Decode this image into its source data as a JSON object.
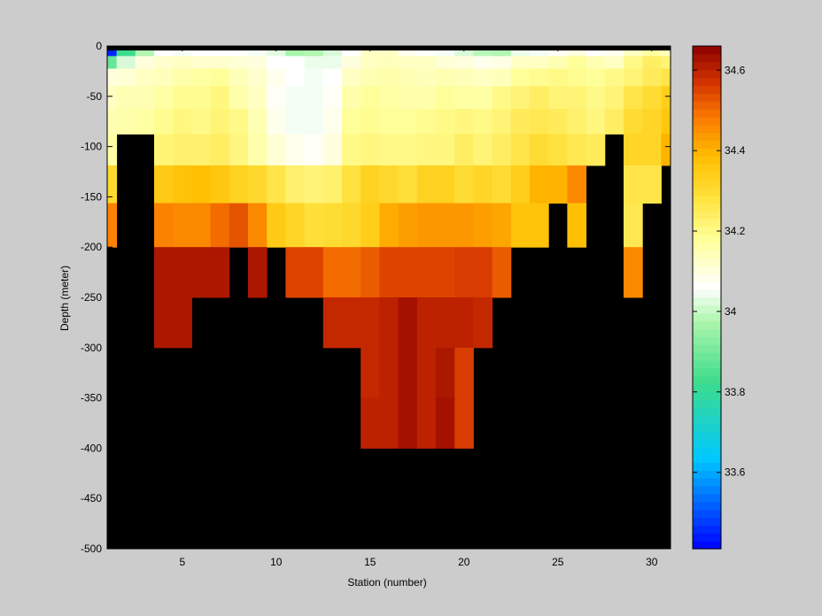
{
  "chart_data": [
    {
      "type": "heatmap",
      "title": "",
      "xlabel": "Station (number)",
      "ylabel": "Depth (meter)",
      "xlim": [
        1,
        31
      ],
      "ylim": [
        -500,
        0
      ],
      "xticks": [
        5,
        10,
        15,
        20,
        25,
        30
      ],
      "yticks": [
        0,
        -50,
        -100,
        -150,
        -200,
        -250,
        -300,
        -350,
        -400,
        -450,
        -500
      ],
      "background_color": "#000000",
      "grid": false,
      "colorbar": {
        "position": "right",
        "range": [
          33.41,
          34.66
        ],
        "ticks": [
          33.6,
          33.8,
          34,
          34.2,
          34.4,
          34.6
        ],
        "colormap": "blue-cyan-green-white-yellow-orange-red-darkred"
      },
      "stations": [
        1,
        2,
        3,
        4,
        5,
        6,
        7,
        8,
        9,
        10,
        11,
        12,
        13,
        14,
        15,
        16,
        17,
        18,
        19,
        20,
        21,
        22,
        23,
        24,
        25,
        26,
        27,
        28,
        29,
        30,
        31
      ],
      "depth_bins": [
        5,
        15,
        30,
        50,
        75,
        100,
        137.5,
        175,
        225,
        275,
        325,
        375
      ],
      "salinity_rows": [
        [
          33.45,
          33.82,
          33.98,
          34.06,
          34.05,
          34.06,
          34.06,
          34.06,
          34.05,
          34.03,
          33.97,
          33.98,
          34.02,
          34.06,
          34.13,
          34.13,
          34.08,
          34.06,
          34.05,
          34.02,
          33.99,
          33.98,
          34.04,
          34.05,
          34.07,
          34.1,
          34.06,
          34.08,
          34.13,
          34.17,
          34.14
        ],
        [
          33.88,
          34.02,
          34.1,
          34.12,
          34.13,
          34.12,
          34.12,
          34.11,
          34.1,
          34.06,
          34.06,
          34.04,
          34.04,
          34.1,
          34.13,
          34.14,
          34.13,
          34.13,
          34.11,
          34.1,
          34.08,
          34.09,
          34.13,
          34.13,
          34.15,
          34.18,
          34.15,
          34.13,
          34.2,
          34.24,
          34.22
        ],
        [
          34.1,
          34.11,
          34.13,
          34.14,
          34.16,
          34.17,
          34.18,
          34.14,
          34.12,
          34.08,
          34.06,
          34.05,
          34.06,
          34.13,
          34.15,
          34.16,
          34.15,
          34.14,
          34.15,
          34.14,
          34.13,
          34.14,
          34.18,
          34.19,
          34.2,
          34.19,
          34.18,
          34.2,
          34.22,
          34.25,
          34.27
        ],
        [
          34.13,
          34.15,
          34.15,
          34.17,
          34.19,
          34.19,
          34.21,
          34.16,
          34.13,
          34.07,
          34.05,
          34.05,
          34.07,
          34.16,
          34.18,
          34.17,
          34.16,
          34.16,
          34.18,
          34.17,
          34.17,
          34.2,
          34.22,
          34.24,
          34.22,
          34.22,
          34.2,
          34.22,
          34.27,
          34.3,
          34.34
        ],
        [
          34.15,
          34.16,
          34.17,
          34.19,
          34.21,
          34.2,
          34.22,
          34.2,
          34.15,
          34.08,
          34.05,
          34.05,
          34.08,
          34.18,
          34.19,
          34.18,
          34.18,
          34.19,
          34.2,
          34.21,
          34.2,
          34.22,
          34.25,
          34.26,
          34.25,
          34.23,
          34.21,
          34.24,
          34.3,
          34.32,
          34.36
        ],
        [
          34.17,
          null,
          null,
          34.22,
          34.23,
          34.23,
          34.24,
          34.21,
          34.16,
          34.11,
          34.08,
          34.07,
          34.1,
          34.2,
          34.21,
          34.2,
          34.2,
          34.21,
          34.21,
          34.24,
          34.22,
          34.24,
          34.27,
          34.3,
          34.28,
          34.26,
          34.25,
          null,
          34.32,
          34.32,
          34.4
        ],
        [
          34.31,
          null,
          null,
          34.35,
          34.37,
          34.38,
          34.36,
          34.33,
          34.31,
          34.27,
          34.23,
          34.22,
          34.23,
          34.28,
          34.33,
          34.31,
          34.29,
          34.33,
          34.33,
          34.3,
          34.32,
          34.3,
          34.34,
          34.4,
          34.4,
          34.46,
          null,
          null,
          34.27,
          34.27,
          null
        ],
        [
          34.47,
          null,
          null,
          34.47,
          34.46,
          34.46,
          34.5,
          34.53,
          34.46,
          34.35,
          34.32,
          34.29,
          34.3,
          34.31,
          34.34,
          34.41,
          34.43,
          34.44,
          34.44,
          34.44,
          34.43,
          34.42,
          34.37,
          34.37,
          null,
          34.38,
          null,
          null,
          34.26,
          null,
          null
        ],
        [
          null,
          null,
          null,
          34.62,
          34.62,
          34.62,
          34.62,
          null,
          34.62,
          null,
          34.55,
          34.55,
          34.5,
          34.5,
          34.52,
          34.55,
          34.55,
          34.55,
          34.55,
          34.56,
          34.56,
          34.52,
          null,
          null,
          null,
          null,
          null,
          null,
          34.46,
          null,
          null
        ],
        [
          null,
          null,
          null,
          34.62,
          34.62,
          null,
          null,
          null,
          null,
          null,
          null,
          null,
          34.59,
          34.59,
          34.59,
          34.6,
          34.63,
          34.6,
          34.6,
          34.6,
          34.59,
          null,
          null,
          null,
          null,
          null,
          null,
          null,
          null,
          null,
          null
        ],
        [
          null,
          null,
          null,
          null,
          null,
          null,
          null,
          null,
          null,
          null,
          null,
          null,
          null,
          null,
          34.59,
          34.6,
          34.63,
          34.6,
          34.62,
          34.56,
          null,
          null,
          null,
          null,
          null,
          null,
          null,
          null,
          null,
          null,
          null
        ],
        [
          null,
          null,
          null,
          null,
          null,
          null,
          null,
          null,
          null,
          null,
          null,
          null,
          null,
          null,
          34.6,
          34.6,
          34.63,
          34.6,
          34.63,
          34.56,
          null,
          null,
          null,
          null,
          null,
          null,
          null,
          null,
          null,
          null,
          null
        ]
      ]
    }
  ]
}
